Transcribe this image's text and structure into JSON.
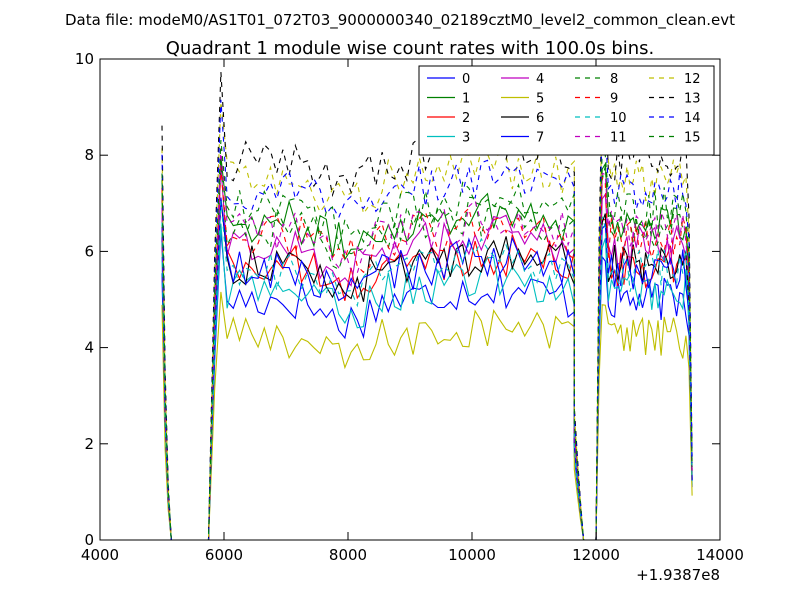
{
  "chart_data": {
    "type": "line",
    "suptitle": "Data file: modeM0/AS1T01_072T03_9000000340_02189cztM0_level2_common_clean.evt",
    "title": "Quadrant 1 module wise count rates with 100.0s bins.",
    "xlabel": "",
    "ylabel": "",
    "x_offset_label": "+1.9387e8",
    "xlim": [
      4000,
      14000
    ],
    "ylim": [
      0,
      10
    ],
    "x_ticks": [
      4000,
      6000,
      8000,
      10000,
      12000,
      14000
    ],
    "x_tick_labels": [
      "4000",
      "6000",
      "8000",
      "10000",
      "12000",
      "14000"
    ],
    "y_ticks": [
      0,
      2,
      4,
      6,
      8,
      10
    ],
    "y_tick_labels": [
      "0",
      "2",
      "4",
      "6",
      "8",
      "10"
    ],
    "grid": false,
    "legend_position": "top-right",
    "legend_columns": 4,
    "segments": [
      {
        "t0": 5000,
        "t1": 5150,
        "step": 50
      },
      {
        "t0": 5750,
        "t1": 11650,
        "step": 100
      },
      {
        "t0": 11650,
        "t1": 11950,
        "step": 50
      },
      {
        "t0": 12000,
        "t1": 13550,
        "step": 50
      }
    ],
    "series": [
      {
        "name": "0",
        "color": "#0000ff",
        "dash": "solid",
        "level": 5.0
      },
      {
        "name": "1",
        "color": "#008000",
        "dash": "solid",
        "level": 6.6
      },
      {
        "name": "2",
        "color": "#ff0000",
        "dash": "solid",
        "level": 5.7
      },
      {
        "name": "3",
        "color": "#00bfbf",
        "dash": "solid",
        "level": 5.2
      },
      {
        "name": "4",
        "color": "#bf00bf",
        "dash": "solid",
        "level": 6.1
      },
      {
        "name": "5",
        "color": "#bfbf00",
        "dash": "solid",
        "level": 4.2
      },
      {
        "name": "6",
        "color": "#000000",
        "dash": "solid",
        "level": 5.7
      },
      {
        "name": "7",
        "color": "#0000ff",
        "dash": "solid",
        "level": 5.6
      },
      {
        "name": "8",
        "color": "#008000",
        "dash": "dashed",
        "level": 6.5
      },
      {
        "name": "9",
        "color": "#ff0000",
        "dash": "dashed",
        "level": 6.3
      },
      {
        "name": "10",
        "color": "#00bfbf",
        "dash": "dashed",
        "level": 5.6
      },
      {
        "name": "11",
        "color": "#bf00bf",
        "dash": "dashed",
        "level": 6.4
      },
      {
        "name": "12",
        "color": "#bfbf00",
        "dash": "dashed",
        "level": 7.5
      },
      {
        "name": "13",
        "color": "#000000",
        "dash": "dashed",
        "level": 7.9
      },
      {
        "name": "14",
        "color": "#0000ff",
        "dash": "dashed",
        "level": 7.3
      },
      {
        "name": "15",
        "color": "#008000",
        "dash": "dashed",
        "level": 6.9
      }
    ]
  }
}
